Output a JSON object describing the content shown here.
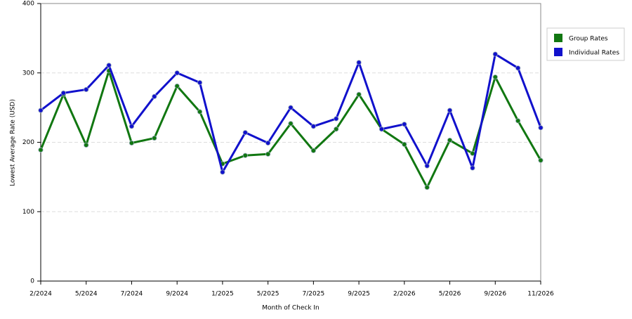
{
  "chart_data": {
    "type": "line",
    "x_label": "Month of Check In",
    "y_label": "Lowest Average Rate (USD)",
    "categories": [
      "2/2024",
      null,
      "5/2024",
      null,
      "7/2024",
      null,
      "9/2024",
      null,
      "1/2025",
      null,
      "5/2025",
      null,
      "7/2025",
      null,
      "9/2025",
      null,
      "2/2026",
      null,
      "5/2026",
      null,
      "9/2026",
      null,
      "11/2026"
    ],
    "series": [
      {
        "name": "Group Rates",
        "color": "#117711",
        "values": [
          189,
          269,
          196,
          303,
          199,
          206,
          281,
          244,
          169,
          181,
          183,
          227,
          188,
          219,
          269,
          219,
          197,
          135,
          203,
          184,
          294,
          231,
          174
        ]
      },
      {
        "name": "Individual Rates",
        "color": "#1111cc",
        "values": [
          246,
          271,
          276,
          311,
          223,
          266,
          300,
          286,
          157,
          214,
          199,
          250,
          223,
          234,
          315,
          219,
          226,
          166,
          246,
          163,
          327,
          307,
          221
        ]
      }
    ],
    "ylim": [
      0,
      400
    ],
    "yticks": [
      0,
      100,
      200,
      300,
      400
    ],
    "grid": true
  }
}
